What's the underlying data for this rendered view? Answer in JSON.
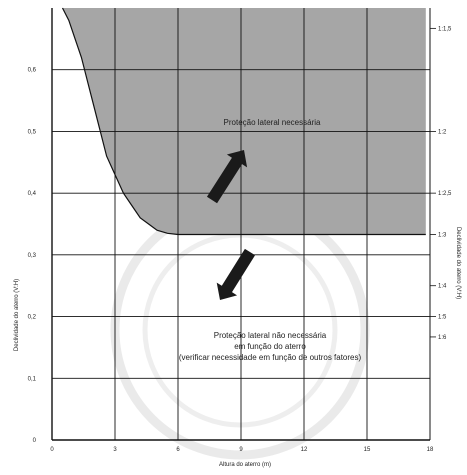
{
  "colors": {
    "region_fill": "#a6a6a6",
    "grid": "#111111",
    "background": "#ffffff",
    "arrow": "#1a1a1a",
    "watermark": "#d9d9d9"
  },
  "chart_data": {
    "type": "area",
    "xlabel": "Altura do aterro (m)",
    "ylabel": "Declividade do aterro (V:H)",
    "y2label": "Declividade do aterro (V:H)",
    "xlim": [
      0,
      18
    ],
    "ylim": [
      0,
      0.7
    ],
    "x_ticks": [
      0,
      3,
      6,
      9,
      12,
      15,
      18
    ],
    "y_ticks": [
      0,
      0.1,
      0.2,
      0.3,
      0.4,
      0.5,
      0.6
    ],
    "y_tick_labels": [
      "0",
      "0,1",
      "0,2",
      "0,3",
      "0,4",
      "0,5",
      "0,6"
    ],
    "right_ticks": [
      {
        "value": 0.667,
        "label": "1:1,5"
      },
      {
        "value": 0.5,
        "label": "1:2"
      },
      {
        "value": 0.4,
        "label": "1:2,5"
      },
      {
        "value": 0.333,
        "label": "1:3"
      },
      {
        "value": 0.25,
        "label": "1:4"
      },
      {
        "value": 0.2,
        "label": "1:5"
      },
      {
        "value": 0.167,
        "label": "1:6"
      }
    ],
    "grid": true,
    "boundary": {
      "x": [
        0.5,
        0.8,
        1.1,
        1.4,
        1.7,
        2.0,
        2.3,
        2.6,
        3.0,
        3.4,
        3.8,
        4.2,
        4.6,
        5.0,
        5.5,
        6.0,
        7,
        9,
        12,
        15,
        17.8
      ],
      "y": [
        0.7,
        0.68,
        0.65,
        0.62,
        0.58,
        0.54,
        0.5,
        0.46,
        0.43,
        0.4,
        0.38,
        0.36,
        0.35,
        0.34,
        0.335,
        0.333,
        0.333,
        0.333,
        0.333,
        0.333,
        0.333
      ]
    },
    "regions": [
      {
        "name": "above",
        "label": "Proteção lateral necessária"
      },
      {
        "name": "below",
        "lines": [
          "Proteção lateral não necessária",
          "em função do aterro",
          "(verificar necessidade em função de outros fatores)"
        ]
      }
    ]
  }
}
